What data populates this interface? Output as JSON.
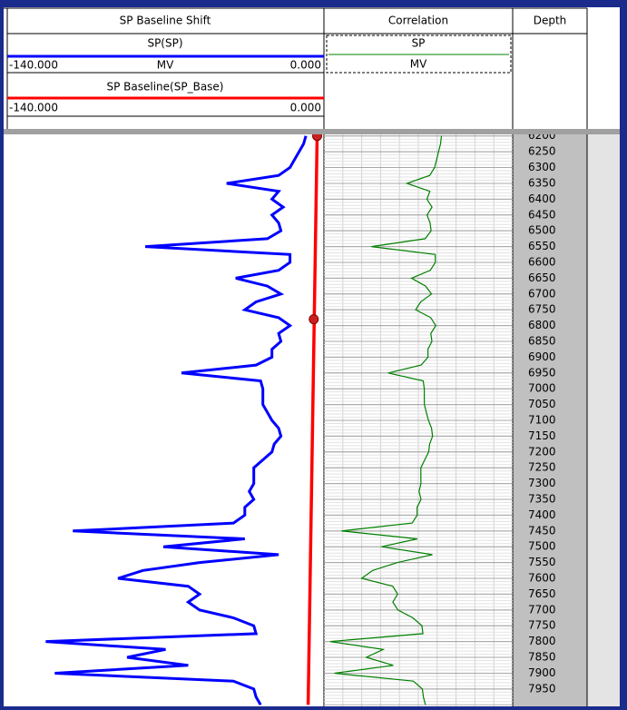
{
  "header": {
    "track1": {
      "title": "SP Baseline Shift",
      "curves": [
        {
          "name": "SP(SP)",
          "color": "#0000ff",
          "left": "-140.000",
          "unit": "MV",
          "right": "0.000"
        },
        {
          "name": "SP Baseline(SP_Base)",
          "color": "#ff0000",
          "left": "-140.000",
          "right": "0.000"
        }
      ]
    },
    "track2": {
      "title": "Correlation",
      "curve": "SP",
      "unit": "MV",
      "color": "#008000"
    },
    "track3": {
      "title": "Depth"
    }
  },
  "log": {
    "depth_lim": [
      6195,
      8005
    ],
    "xlim": [
      -140,
      0
    ],
    "depth_ticks": [
      6200,
      6250,
      6300,
      6350,
      6400,
      6450,
      6500,
      6550,
      6600,
      6650,
      6700,
      6750,
      6800,
      6850,
      6900,
      6950,
      7000,
      7050,
      7100,
      7150,
      7200,
      7250,
      7300,
      7350,
      7400,
      7450,
      7500,
      7550,
      7600,
      7650,
      7700,
      7750,
      7800,
      7850,
      7900,
      7950
    ],
    "sp": {
      "depths": [
        6200,
        6225,
        6250,
        6275,
        6300,
        6325,
        6350,
        6375,
        6400,
        6425,
        6450,
        6475,
        6500,
        6525,
        6550,
        6575,
        6600,
        6625,
        6650,
        6675,
        6700,
        6725,
        6750,
        6775,
        6800,
        6825,
        6850,
        6875,
        6900,
        6925,
        6950,
        6975,
        7000,
        7025,
        7050,
        7075,
        7100,
        7125,
        7150,
        7175,
        7200,
        7225,
        7250,
        7275,
        7300,
        7325,
        7350,
        7375,
        7400,
        7425,
        7450,
        7475,
        7500,
        7525,
        7550,
        7575,
        7600,
        7625,
        7650,
        7675,
        7700,
        7725,
        7750,
        7775,
        7800,
        7825,
        7850,
        7875,
        7900,
        7925,
        7950,
        7975,
        8000
      ],
      "values": [
        -8,
        -9,
        -11,
        -13,
        -15,
        -20,
        -43,
        -20,
        -23,
        -18,
        -23,
        -20,
        -19,
        -25,
        -79,
        -15,
        -15,
        -20,
        -39,
        -25,
        -19,
        -30,
        -35,
        -20,
        -15,
        -20,
        -19,
        -23,
        -23,
        -30,
        -63,
        -28,
        -27,
        -27,
        -27,
        -25,
        -23,
        -20,
        -19,
        -22,
        -23,
        -27,
        -31,
        -31,
        -31,
        -33,
        -31,
        -35,
        -35,
        -40,
        -111,
        -35,
        -71,
        -20,
        -55,
        -80,
        -91,
        -60,
        -55,
        -60,
        -55,
        -40,
        -31,
        -30,
        -123,
        -70,
        -87,
        -60,
        -119,
        -40,
        -31,
        -30,
        -28
      ]
    },
    "baseline": {
      "depths": [
        6200,
        8000
      ],
      "values": [
        -3,
        -7
      ]
    },
    "markers": {
      "depths": [
        6200,
        6780
      ],
      "values": [
        -3,
        -4.5
      ]
    }
  }
}
